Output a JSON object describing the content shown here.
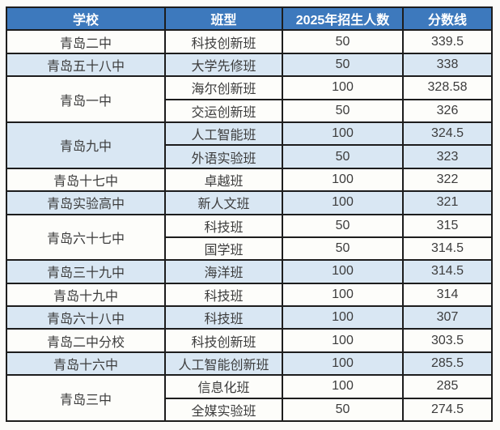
{
  "colors": {
    "header_bg": "#3d79bd",
    "header_text": "#ffffff",
    "shaded_row_bg": "#d9e7f3",
    "plain_row_bg": "#fdfdfa",
    "border": "#1d1d1d",
    "cell_text": "#3c3c3c",
    "page_bg": "#fbfbf9"
  },
  "chart_data": {
    "type": "table",
    "columns": [
      "学校",
      "班型",
      "2025年招生人数",
      "分数线"
    ],
    "groups": [
      {
        "school": "青岛二中",
        "shade": false,
        "rows": [
          {
            "class_type": "科技创新班",
            "enrollment": "50",
            "score": "339.5"
          }
        ]
      },
      {
        "school": "青岛五十八中",
        "shade": true,
        "rows": [
          {
            "class_type": "大学先修班",
            "enrollment": "50",
            "score": "338"
          }
        ]
      },
      {
        "school": "青岛一中",
        "shade": false,
        "rows": [
          {
            "class_type": "海尔创新班",
            "enrollment": "100",
            "score": "328.58"
          },
          {
            "class_type": "交运创新班",
            "enrollment": "50",
            "score": "326"
          }
        ]
      },
      {
        "school": "青岛九中",
        "shade": true,
        "rows": [
          {
            "class_type": "人工智能班",
            "enrollment": "100",
            "score": "324.5"
          },
          {
            "class_type": "外语实验班",
            "enrollment": "50",
            "score": "323"
          }
        ]
      },
      {
        "school": "青岛十七中",
        "shade": false,
        "rows": [
          {
            "class_type": "卓越班",
            "enrollment": "100",
            "score": "322"
          }
        ]
      },
      {
        "school": "青岛实验高中",
        "shade": true,
        "rows": [
          {
            "class_type": "新人文班",
            "enrollment": "100",
            "score": "321"
          }
        ]
      },
      {
        "school": "青岛六十七中",
        "shade": false,
        "rows": [
          {
            "class_type": "科技班",
            "enrollment": "50",
            "score": "315"
          },
          {
            "class_type": "国学班",
            "enrollment": "50",
            "score": "314.5"
          }
        ]
      },
      {
        "school": "青岛三十九中",
        "shade": true,
        "rows": [
          {
            "class_type": "海洋班",
            "enrollment": "100",
            "score": "314.5"
          }
        ]
      },
      {
        "school": "青岛十九中",
        "shade": false,
        "rows": [
          {
            "class_type": "科技班",
            "enrollment": "100",
            "score": "314"
          }
        ]
      },
      {
        "school": "青岛六十八中",
        "shade": true,
        "rows": [
          {
            "class_type": "科技班",
            "enrollment": "100",
            "score": "307"
          }
        ]
      },
      {
        "school": "青岛二中分校",
        "shade": false,
        "rows": [
          {
            "class_type": "科技创新班",
            "enrollment": "100",
            "score": "303.5"
          }
        ]
      },
      {
        "school": "青岛十六中",
        "shade": true,
        "rows": [
          {
            "class_type": "人工智能创新班",
            "enrollment": "100",
            "score": "285.5"
          }
        ]
      },
      {
        "school": "青岛三中",
        "shade": false,
        "rows": [
          {
            "class_type": "信息化班",
            "enrollment": "100",
            "score": "285"
          },
          {
            "class_type": "全媒实验班",
            "enrollment": "50",
            "score": "274.5"
          }
        ]
      }
    ]
  }
}
